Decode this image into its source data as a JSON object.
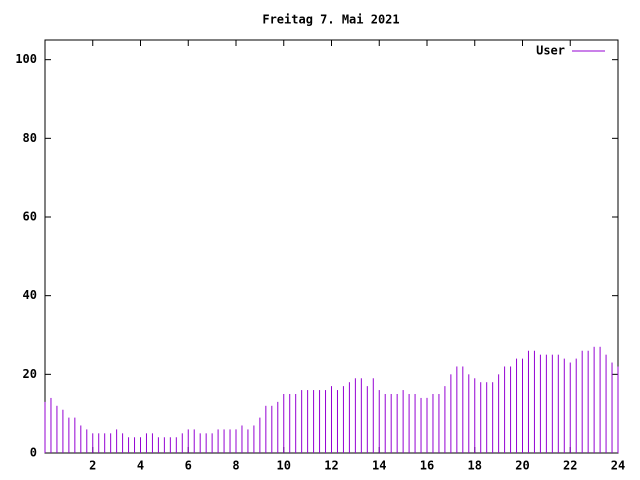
{
  "chart_data": {
    "type": "impulses",
    "title": "Freitag 7. Mai 2021",
    "x": [
      0,
      0.25,
      0.5,
      0.75,
      1,
      1.25,
      1.5,
      1.75,
      2,
      2.25,
      2.5,
      2.75,
      3,
      3.25,
      3.5,
      3.75,
      4,
      4.25,
      4.5,
      4.75,
      5,
      5.25,
      5.5,
      5.75,
      6,
      6.25,
      6.5,
      6.75,
      7,
      7.25,
      7.5,
      7.75,
      8,
      8.25,
      8.5,
      8.75,
      9,
      9.25,
      9.5,
      9.75,
      10,
      10.25,
      10.5,
      10.75,
      11,
      11.25,
      11.5,
      11.75,
      12,
      12.25,
      12.5,
      12.75,
      13,
      13.25,
      13.5,
      13.75,
      14,
      14.25,
      14.5,
      14.75,
      15,
      15.25,
      15.5,
      15.75,
      16,
      16.25,
      16.5,
      16.75,
      17,
      17.25,
      17.5,
      17.75,
      18,
      18.25,
      18.5,
      18.75,
      19,
      19.25,
      19.5,
      19.75,
      20,
      20.25,
      20.5,
      20.75,
      21,
      21.25,
      21.5,
      21.75,
      22,
      22.25,
      22.5,
      22.75,
      23,
      23.25,
      23.5,
      23.75,
      24
    ],
    "series": [
      {
        "name": "User",
        "color": "#9400d3",
        "values": [
          13,
          14,
          12,
          11,
          9,
          9,
          7,
          6,
          5,
          5,
          5,
          5,
          6,
          5,
          4,
          4,
          4,
          5,
          5,
          4,
          4,
          4,
          4,
          5,
          6,
          6,
          5,
          5,
          5,
          6,
          6,
          6,
          6,
          7,
          6,
          7,
          9,
          12,
          12,
          13,
          15,
          15,
          15,
          16,
          16,
          16,
          16,
          16,
          17,
          16,
          17,
          18,
          19,
          19,
          17,
          19,
          16,
          15,
          15,
          15,
          16,
          15,
          15,
          14,
          14,
          15,
          15,
          17,
          20,
          22,
          22,
          20,
          19,
          18,
          18,
          18,
          20,
          22,
          22,
          24,
          24,
          26,
          26,
          25,
          25,
          25,
          25,
          24,
          23,
          24,
          26,
          26,
          27,
          27,
          25,
          23,
          22
        ]
      }
    ],
    "xlim": [
      0,
      24
    ],
    "xticks": [
      2,
      4,
      6,
      8,
      10,
      12,
      14,
      16,
      18,
      20,
      22,
      24
    ],
    "ylim": [
      0,
      105
    ],
    "yticks": [
      0,
      20,
      40,
      60,
      80,
      100
    ],
    "legend": "top-right"
  }
}
